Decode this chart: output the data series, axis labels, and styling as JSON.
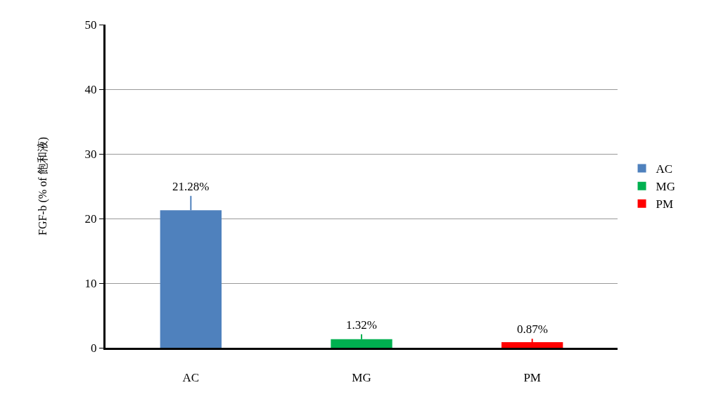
{
  "chart_data": {
    "type": "bar",
    "ylabel": "FGF-b (% of 飽和液)",
    "categories": [
      "AC",
      "MG",
      "PM"
    ],
    "series": [
      {
        "name": "AC",
        "color": "#4f81bd",
        "values": [
          21.28,
          null,
          null
        ],
        "errors": [
          [
            21.28,
            23.5
          ],
          null,
          null
        ],
        "value_labels": [
          "21.28%",
          null,
          null
        ]
      },
      {
        "name": "MG",
        "color": "#00b050",
        "values": [
          null,
          1.32,
          null
        ],
        "errors": [
          null,
          [
            1.32,
            2.1
          ],
          null
        ],
        "value_labels": [
          null,
          "1.32%",
          null
        ]
      },
      {
        "name": "PM",
        "color": "#ff0000",
        "values": [
          null,
          null,
          0.87
        ],
        "errors": [
          null,
          null,
          [
            0.87,
            1.4
          ]
        ],
        "value_labels": [
          null,
          null,
          "0.87%"
        ]
      }
    ],
    "ylim": [
      0,
      50
    ],
    "yticks": [
      0,
      10,
      20,
      30,
      40,
      50
    ],
    "grid": "y",
    "legend": "right"
  }
}
